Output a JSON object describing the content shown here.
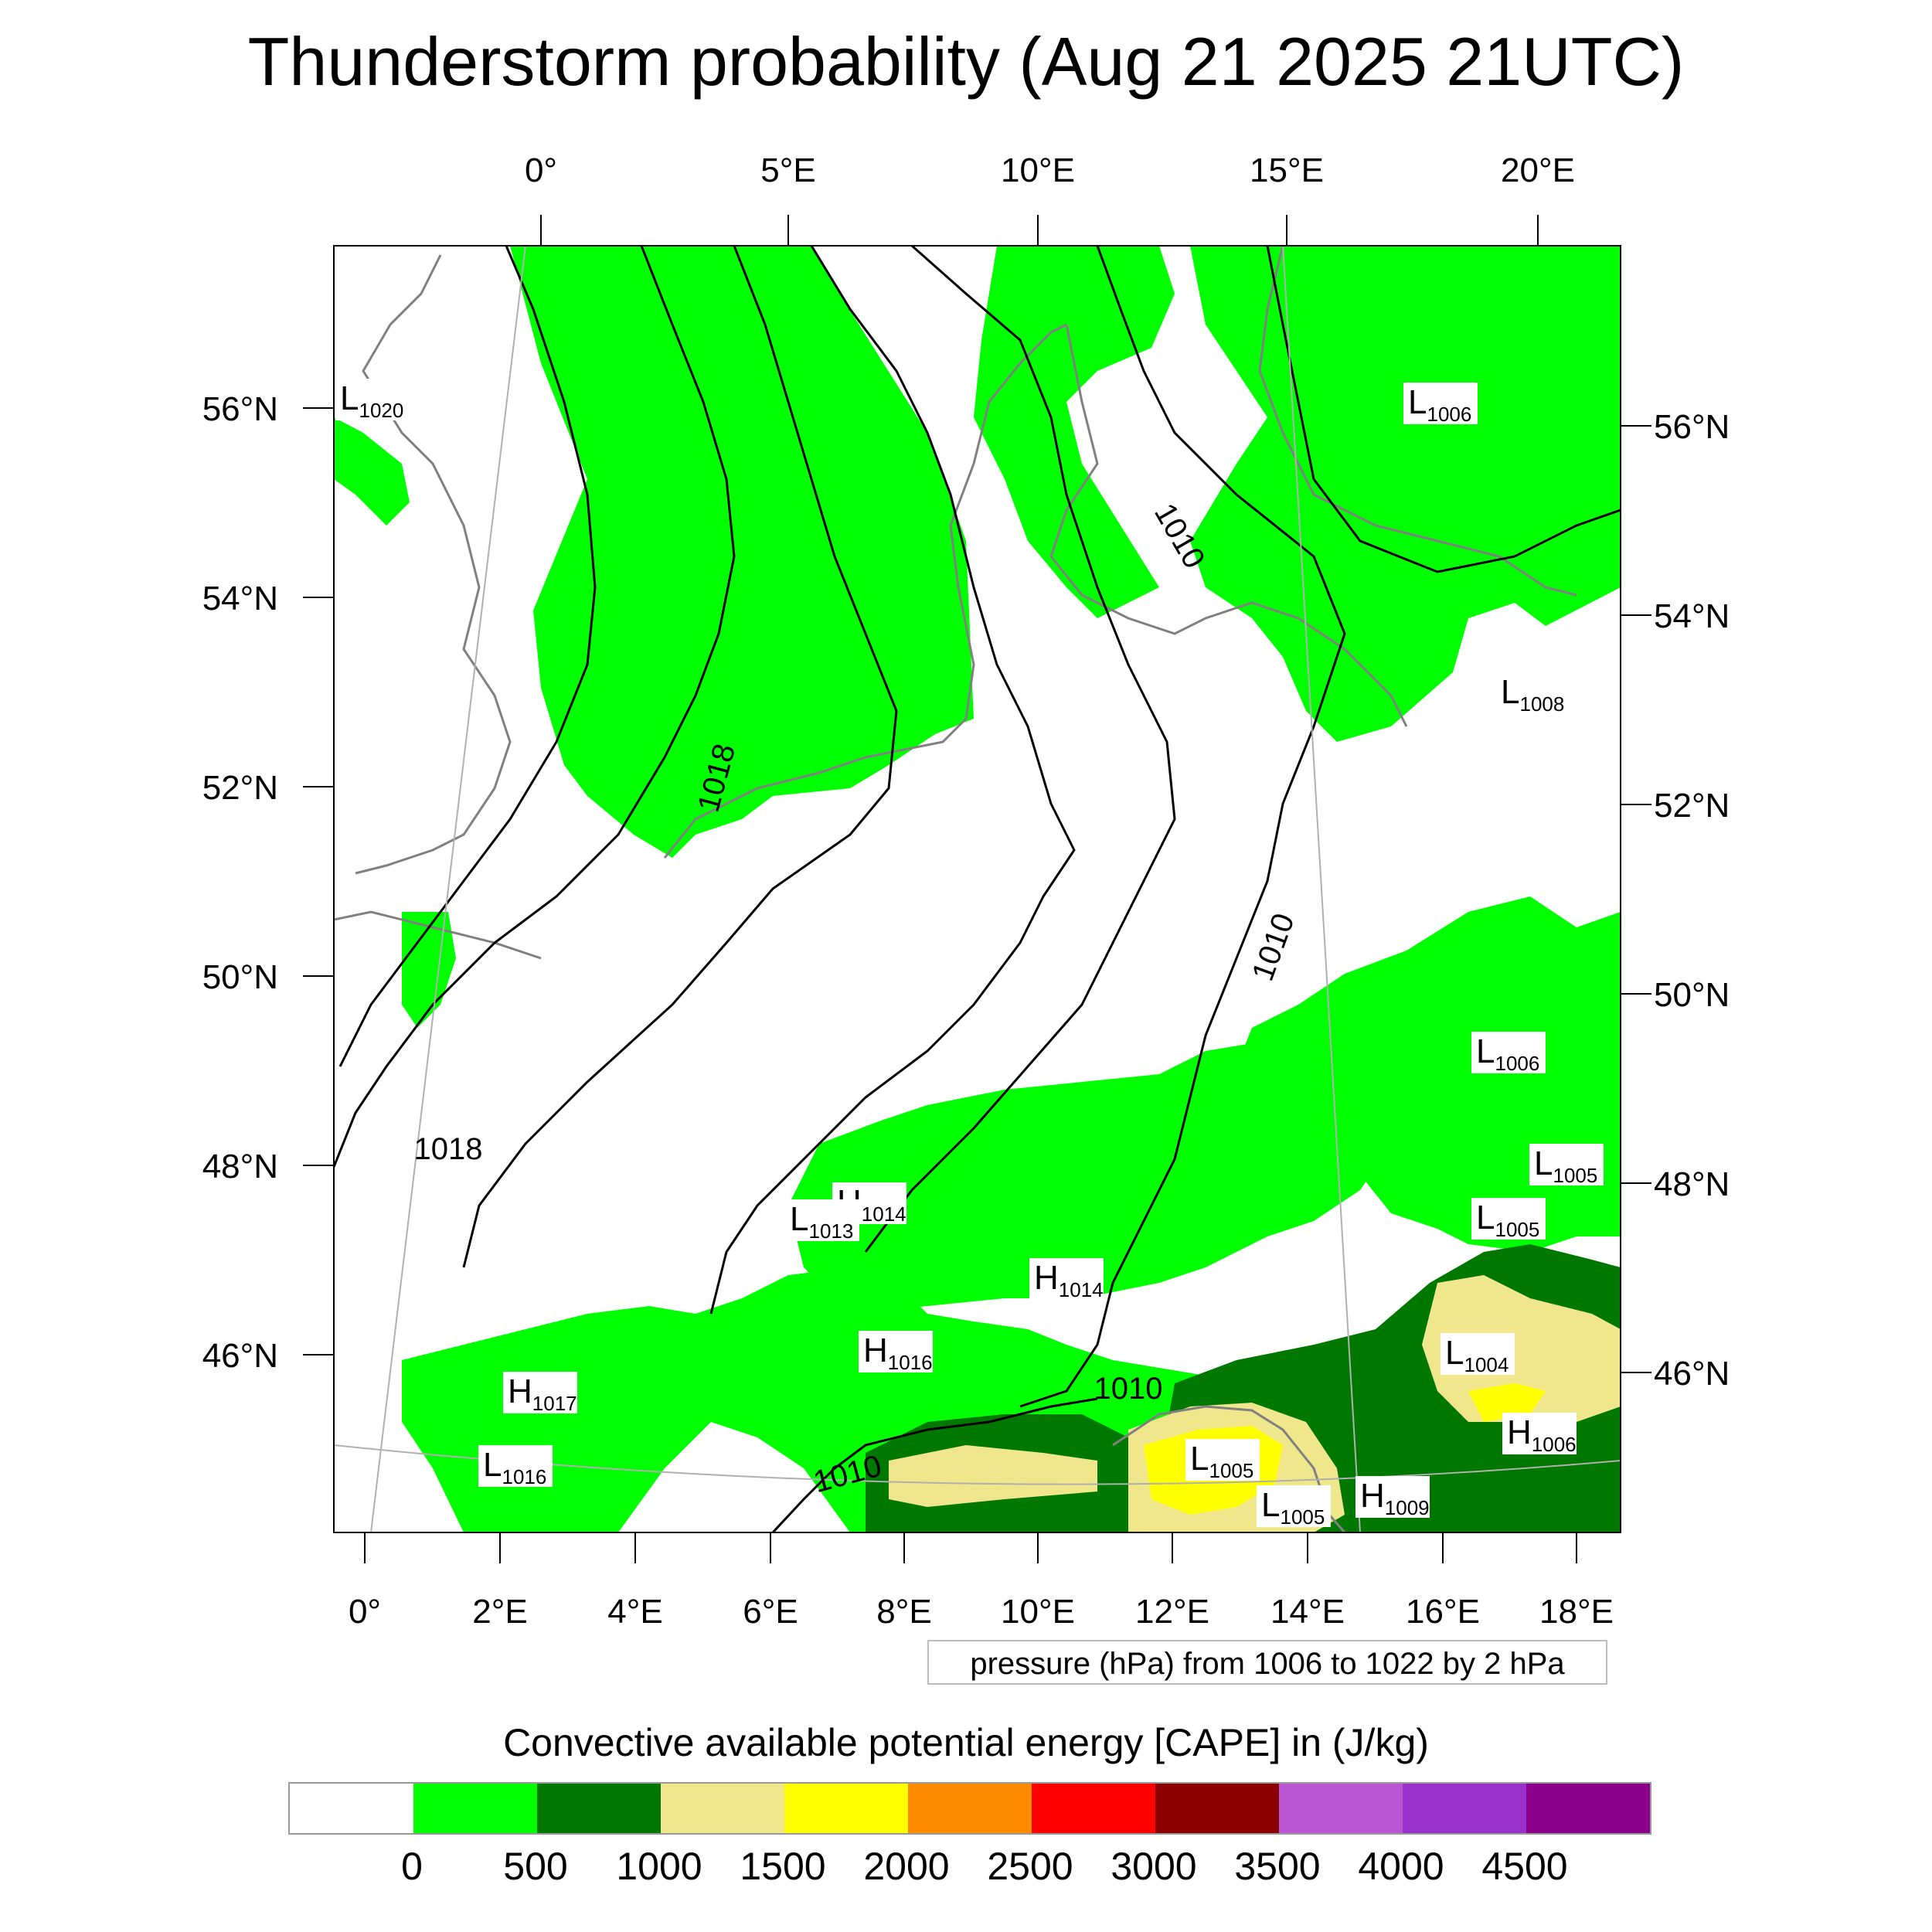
{
  "title": "Thunderstorm probability (Aug 21 2025 21UTC)",
  "top_lon_labels": [
    "0°",
    "5°E",
    "10°E",
    "15°E",
    "20°E"
  ],
  "bottom_lon_labels": [
    "0°",
    "2°E",
    "4°E",
    "6°E",
    "8°E",
    "10°E",
    "12°E",
    "14°E",
    "16°E",
    "18°E"
  ],
  "left_lat_labels": [
    "56°N",
    "54°N",
    "52°N",
    "50°N",
    "48°N",
    "46°N"
  ],
  "right_lat_labels": [
    "56°N",
    "54°N",
    "52°N",
    "50°N",
    "48°N",
    "46°N"
  ],
  "isobar_labels": [
    "1018",
    "1018",
    "1010",
    "1010",
    "1010",
    "1010"
  ],
  "pressure_centers": [
    {
      "letter": "L",
      "value": "1020"
    },
    {
      "letter": "L",
      "value": "1006"
    },
    {
      "letter": "L",
      "value": "1008"
    },
    {
      "letter": "L",
      "value": "1006"
    },
    {
      "letter": "L",
      "value": "1005"
    },
    {
      "letter": "L",
      "value": "1005"
    },
    {
      "letter": "H",
      "value": "1014"
    },
    {
      "letter": "L",
      "value": "1013"
    },
    {
      "letter": "H",
      "value": "1014"
    },
    {
      "letter": "H",
      "value": "1016"
    },
    {
      "letter": "H",
      "value": "1017"
    },
    {
      "letter": "L",
      "value": "1016"
    },
    {
      "letter": "L",
      "value": "1004"
    },
    {
      "letter": "H",
      "value": "1006"
    },
    {
      "letter": "L",
      "value": "1005"
    },
    {
      "letter": "L",
      "value": "1005"
    },
    {
      "letter": "H",
      "value": "1009"
    }
  ],
  "pressure_note": "pressure (hPa) from 1006 to 1022 by 2 hPa",
  "legend": {
    "title": "Convective available potential energy [CAPE] in (J/kg)",
    "colors": [
      "#ffffff",
      "#00ff00",
      "#007800",
      "#f0e68c",
      "#ffff00",
      "#ff8c00",
      "#ff0000",
      "#8b0000",
      "#ba55d3",
      "#9932cc",
      "#8b008b"
    ],
    "labels": [
      "0",
      "500",
      "1000",
      "1500",
      "2000",
      "2500",
      "3000",
      "3500",
      "4000",
      "4500"
    ]
  },
  "colors": {
    "cape_0_500": "#00ff00",
    "cape_500_1000": "#007800",
    "cape_1000_1500": "#f0e68c",
    "cape_1500_2000": "#ffff00",
    "coastline": "#808080",
    "isobar": "#000000"
  }
}
